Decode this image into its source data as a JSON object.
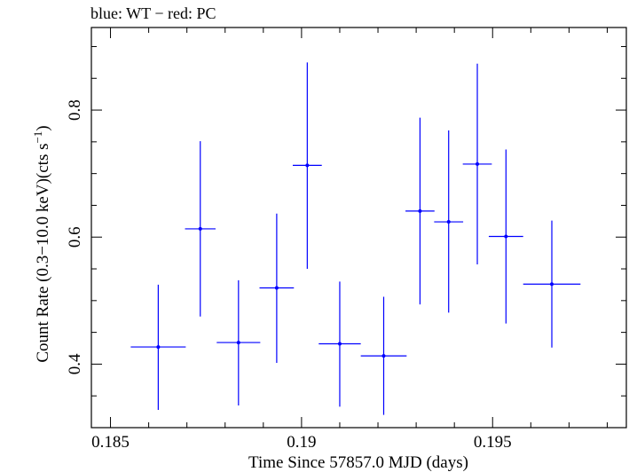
{
  "chart_data": {
    "type": "scatter",
    "title": "blue: WT − red: PC",
    "xlabel": "Time Since 57857.0 MJD (days)",
    "ylabel_main": "Count Rate (0.3−10.0 keV)(cts s",
    "ylabel_sup": "−1",
    "ylabel_close": ")",
    "xlim": [
      0.1845,
      0.1985
    ],
    "ylim": [
      0.3,
      0.93
    ],
    "x_ticks": [
      {
        "value": 0.185,
        "label": "0.185"
      },
      {
        "value": 0.19,
        "label": "0.19"
      },
      {
        "value": 0.195,
        "label": "0.195"
      }
    ],
    "y_ticks": [
      {
        "value": 0.4,
        "label": "0.4"
      },
      {
        "value": 0.6,
        "label": "0.6"
      },
      {
        "value": 0.8,
        "label": "0.8"
      }
    ],
    "x_minor_step": 0.001,
    "y_minor_step": 0.05,
    "colors": {
      "wt": "#0000ff",
      "axes": "#000000"
    },
    "series": [
      {
        "points": [
          {
            "x": 0.18625,
            "xerr": 0.00072,
            "y": 0.427,
            "yerr_lo": 0.099,
            "yerr_hi": 0.098
          },
          {
            "x": 0.18735,
            "xerr": 0.0004,
            "y": 0.613,
            "yerr_lo": 0.138,
            "yerr_hi": 0.138
          },
          {
            "x": 0.18835,
            "xerr": 0.00057,
            "y": 0.434,
            "yerr_lo": 0.099,
            "yerr_hi": 0.098
          },
          {
            "x": 0.18935,
            "xerr": 0.00045,
            "y": 0.52,
            "yerr_lo": 0.118,
            "yerr_hi": 0.117
          },
          {
            "x": 0.19015,
            "xerr": 0.00038,
            "y": 0.713,
            "yerr_lo": 0.163,
            "yerr_hi": 0.162
          },
          {
            "x": 0.191,
            "xerr": 0.00055,
            "y": 0.432,
            "yerr_lo": 0.099,
            "yerr_hi": 0.098
          },
          {
            "x": 0.19215,
            "xerr": 0.0006,
            "y": 0.413,
            "yerr_lo": 0.093,
            "yerr_hi": 0.093
          },
          {
            "x": 0.1931,
            "xerr": 0.00038,
            "y": 0.641,
            "yerr_lo": 0.147,
            "yerr_hi": 0.147
          },
          {
            "x": 0.19385,
            "xerr": 0.00038,
            "y": 0.624,
            "yerr_lo": 0.143,
            "yerr_hi": 0.144
          },
          {
            "x": 0.1946,
            "xerr": 0.00038,
            "y": 0.715,
            "yerr_lo": 0.158,
            "yerr_hi": 0.158
          },
          {
            "x": 0.19535,
            "xerr": 0.00045,
            "y": 0.601,
            "yerr_lo": 0.137,
            "yerr_hi": 0.137
          },
          {
            "x": 0.19655,
            "xerr": 0.00075,
            "y": 0.526,
            "yerr_lo": 0.1,
            "yerr_hi": 0.1
          }
        ]
      }
    ]
  }
}
